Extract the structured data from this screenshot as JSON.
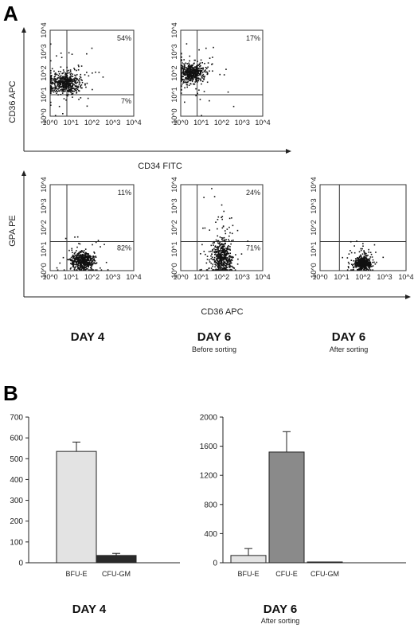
{
  "panel_a_label": "A",
  "panel_b_label": "B",
  "axis_labels": {
    "row1_y": "CD36 APC",
    "row1_x": "CD34 FITC",
    "row2_y": "GPA PE",
    "row2_x": "CD36 APC"
  },
  "log_ticks": [
    "10^0",
    "10^1",
    "10^2",
    "10^3",
    "10^4"
  ],
  "panel_a_labels": {
    "day4": "DAY 4",
    "day6": "DAY 6",
    "before_sorting": "Before sorting",
    "day6_sorted": "DAY 6",
    "after_sorting": "After sorting"
  },
  "panel_b_labels": {
    "day4": "DAY 4",
    "day6": "DAY 6",
    "after_sorting": "After sorting"
  },
  "flow_plots": [
    {
      "id": "cd34-cd36-day4",
      "quadrant_labels": {
        "upper_right": "54%",
        "lower_right": "7%"
      },
      "cluster": {
        "x_log": 0.7,
        "y_log": 1.55,
        "sx": 0.38,
        "sy": 0.25
      }
    },
    {
      "id": "cd34-cd36-day6",
      "quadrant_labels": {
        "upper_right": "17%"
      },
      "cluster": {
        "x_log": 0.55,
        "y_log": 2.0,
        "sx": 0.32,
        "sy": 0.22
      }
    },
    {
      "id": "cd36-gpa-day4",
      "quadrant_labels": {
        "upper_right": "11%",
        "lower_right": "82%"
      },
      "cluster": {
        "x_log": 1.55,
        "y_log": 0.45,
        "sx": 0.3,
        "sy": 0.2
      }
    },
    {
      "id": "cd36-gpa-day6-before",
      "quadrant_labels": {
        "upper_right": "24%",
        "lower_right": "71%"
      },
      "cluster": {
        "x_log": 2.0,
        "y_log": 0.6,
        "sx": 0.25,
        "sy": 0.42
      }
    },
    {
      "id": "cd36-gpa-day6-after",
      "quadrant_labels": {},
      "cluster": {
        "x_log": 2.0,
        "y_log": 0.35,
        "sx": 0.17,
        "sy": 0.14
      }
    }
  ],
  "chart_data": [
    {
      "type": "bar",
      "categories": [
        "BFU-E",
        "CFU-GM"
      ],
      "values": [
        535,
        35
      ],
      "errors": [
        45,
        10
      ],
      "colors": [
        "#e3e3e3",
        "#2a2a2a"
      ],
      "ylim": [
        0,
        700
      ],
      "yticks": [
        "0",
        "100",
        "200",
        "300",
        "400",
        "500",
        "600",
        "700"
      ],
      "title": "DAY 4"
    },
    {
      "type": "bar",
      "categories": [
        "BFU-E",
        "CFU-E",
        "CFU-GM"
      ],
      "values": [
        100,
        1520,
        8
      ],
      "errors": [
        95,
        280,
        0
      ],
      "colors": [
        "#e3e3e3",
        "#8a8a8a",
        "#2a2a2a"
      ],
      "ylim": [
        0,
        2000
      ],
      "yticks": [
        "0",
        "400",
        "800",
        "1200",
        "1600",
        "2000"
      ],
      "title": "DAY 6",
      "subtitle": "After sorting"
    }
  ]
}
